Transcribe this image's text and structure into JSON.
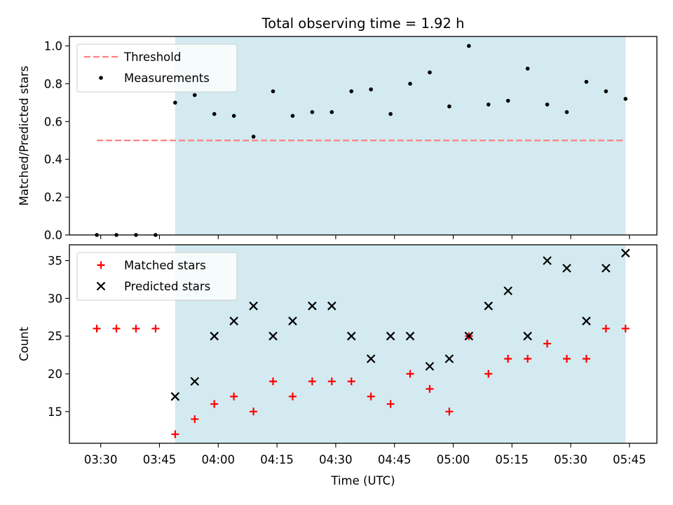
{
  "chart_data": {
    "title": "Total observing time = 1.92 h",
    "xlabel": "Time (UTC)",
    "x_tick_labels": [
      "03:30",
      "03:45",
      "04:00",
      "04:15",
      "04:30",
      "04:45",
      "05:00",
      "05:15",
      "05:30",
      "05:45"
    ],
    "x_range": [
      "03:22",
      "05:52"
    ],
    "highlight_span": [
      "03:49",
      "05:44"
    ],
    "highlight_color": "#d3eaf0",
    "times": [
      "03:29",
      "03:34",
      "03:39",
      "03:44",
      "03:49",
      "03:54",
      "03:59",
      "04:04",
      "04:09",
      "04:14",
      "04:19",
      "04:24",
      "04:29",
      "04:34",
      "04:39",
      "04:44",
      "04:49",
      "04:54",
      "04:59",
      "05:04",
      "05:09",
      "05:14",
      "05:19",
      "05:24",
      "05:29",
      "05:34",
      "05:39",
      "05:44"
    ],
    "panels": [
      {
        "type": "scatter",
        "ylabel": "Matched/Predicted stars",
        "ylim": [
          0,
          1.05
        ],
        "yticks": [
          "0.0",
          "0.2",
          "0.4",
          "0.6",
          "0.8",
          "1.0"
        ],
        "legend_position": "top-left",
        "series": [
          {
            "name": "Threshold",
            "kind": "dashed-line",
            "color": "#ff7f7f",
            "x": [
              "03:29",
              "05:44"
            ],
            "values": [
              0.5,
              0.5
            ]
          },
          {
            "name": "Measurements",
            "kind": "dot",
            "color": "#000000",
            "values": [
              0.0,
              0.0,
              0.0,
              0.0,
              0.7,
              0.74,
              0.64,
              0.63,
              0.52,
              0.76,
              0.63,
              0.65,
              0.65,
              0.76,
              0.77,
              0.64,
              0.8,
              0.86,
              0.68,
              1.0,
              0.69,
              0.71,
              0.88,
              0.69,
              0.65,
              0.81,
              0.76,
              0.72
            ]
          }
        ]
      },
      {
        "type": "scatter",
        "ylabel": "Count",
        "ylim": [
          10.8,
          37.1
        ],
        "yticks": [
          "15",
          "20",
          "25",
          "30",
          "35"
        ],
        "legend_position": "top-left",
        "series": [
          {
            "name": "Matched stars",
            "kind": "plus",
            "color": "#ff0000",
            "values": [
              26,
              26,
              26,
              26,
              12,
              14,
              16,
              17,
              15,
              19,
              17,
              19,
              19,
              19,
              17,
              16,
              20,
              18,
              15,
              25,
              20,
              22,
              22,
              24,
              22,
              22,
              26,
              26
            ]
          },
          {
            "name": "Predicted stars",
            "kind": "x",
            "color": "#000000",
            "x": [
              "03:49",
              "03:54",
              "03:59",
              "04:04",
              "04:09",
              "04:14",
              "04:19",
              "04:24",
              "04:29",
              "04:34",
              "04:39",
              "04:44",
              "04:49",
              "04:54",
              "04:59",
              "05:04",
              "05:09",
              "05:14",
              "05:19",
              "05:24",
              "05:29",
              "05:34",
              "05:39",
              "05:44"
            ],
            "values": [
              17,
              19,
              25,
              27,
              29,
              25,
              27,
              29,
              29,
              25,
              22,
              25,
              25,
              21,
              22,
              25,
              29,
              31,
              25,
              35,
              34,
              27,
              34,
              36
            ]
          }
        ]
      }
    ]
  }
}
